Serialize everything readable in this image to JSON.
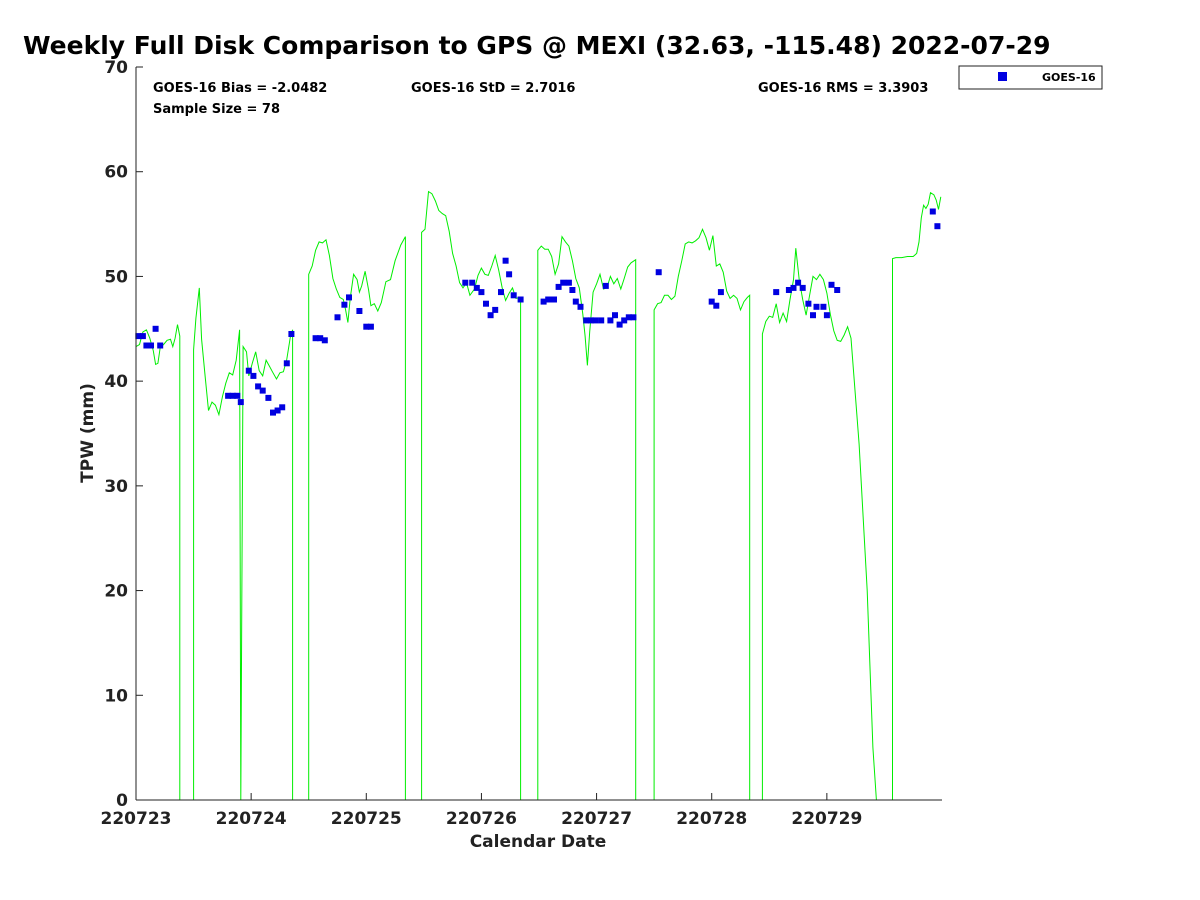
{
  "chart_data": {
    "type": "scatter",
    "title": "Weekly Full Disk Comparison to GPS @ MEXI (32.63, -115.48) 2022-07-29",
    "xlabel": "Calendar Date",
    "ylabel": "TPW (mm)",
    "xlim": [
      0,
      7
    ],
    "ylim": [
      0,
      70
    ],
    "x_ticks": [
      {
        "value": 0,
        "label": "220723"
      },
      {
        "value": 1,
        "label": "220724"
      },
      {
        "value": 2,
        "label": "220725"
      },
      {
        "value": 3,
        "label": "220726"
      },
      {
        "value": 4,
        "label": "220727"
      },
      {
        "value": 5,
        "label": "220728"
      },
      {
        "value": 6,
        "label": "220729"
      }
    ],
    "y_ticks": [
      0,
      10,
      20,
      30,
      40,
      50,
      60,
      70
    ],
    "grid": false,
    "legend_position": "top-right",
    "stats": {
      "bias": "GOES-16 Bias = -2.0482",
      "std": "GOES-16 StD = 2.7016",
      "rms": "GOES-16 RMS = 3.3903",
      "sample": "Sample Size = 78"
    },
    "series": [
      {
        "name": "GOES-16",
        "type": "scatter",
        "marker": "square",
        "color": "#0000e0",
        "points": [
          [
            0.02,
            44.3
          ],
          [
            0.06,
            44.3
          ],
          [
            0.09,
            43.4
          ],
          [
            0.13,
            43.4
          ],
          [
            0.17,
            45.0
          ],
          [
            0.21,
            43.4
          ],
          [
            0.8,
            38.6
          ],
          [
            0.84,
            38.6
          ],
          [
            0.88,
            38.6
          ],
          [
            0.91,
            38.0
          ],
          [
            0.98,
            41.0
          ],
          [
            1.02,
            40.5
          ],
          [
            1.06,
            39.5
          ],
          [
            1.1,
            39.1
          ],
          [
            1.15,
            38.4
          ],
          [
            1.19,
            37.0
          ],
          [
            1.23,
            37.2
          ],
          [
            1.27,
            37.5
          ],
          [
            1.31,
            41.7
          ],
          [
            1.35,
            44.5
          ],
          [
            1.56,
            44.1
          ],
          [
            1.6,
            44.1
          ],
          [
            1.64,
            43.9
          ],
          [
            1.75,
            46.1
          ],
          [
            1.81,
            47.3
          ],
          [
            1.85,
            48.0
          ],
          [
            1.94,
            46.7
          ],
          [
            2.0,
            45.2
          ],
          [
            2.04,
            45.2
          ],
          [
            2.86,
            49.4
          ],
          [
            2.92,
            49.4
          ],
          [
            2.96,
            48.9
          ],
          [
            3.0,
            48.5
          ],
          [
            3.04,
            47.4
          ],
          [
            3.08,
            46.3
          ],
          [
            3.12,
            46.8
          ],
          [
            3.17,
            48.5
          ],
          [
            3.21,
            51.5
          ],
          [
            3.24,
            50.2
          ],
          [
            3.28,
            48.2
          ],
          [
            3.34,
            47.8
          ],
          [
            3.54,
            47.6
          ],
          [
            3.58,
            47.8
          ],
          [
            3.63,
            47.8
          ],
          [
            3.67,
            49.0
          ],
          [
            3.71,
            49.4
          ],
          [
            3.76,
            49.4
          ],
          [
            3.79,
            48.7
          ],
          [
            3.82,
            47.6
          ],
          [
            3.86,
            47.1
          ],
          [
            3.91,
            45.8
          ],
          [
            3.95,
            45.8
          ],
          [
            3.99,
            45.8
          ],
          [
            4.04,
            45.8
          ],
          [
            4.08,
            49.1
          ],
          [
            4.12,
            45.8
          ],
          [
            4.16,
            46.3
          ],
          [
            4.2,
            45.4
          ],
          [
            4.24,
            45.8
          ],
          [
            4.28,
            46.1
          ],
          [
            4.32,
            46.1
          ],
          [
            4.54,
            50.4
          ],
          [
            5.0,
            47.6
          ],
          [
            5.04,
            47.2
          ],
          [
            5.08,
            48.5
          ],
          [
            5.56,
            48.5
          ],
          [
            5.67,
            48.7
          ],
          [
            5.71,
            48.9
          ],
          [
            5.75,
            49.4
          ],
          [
            5.79,
            48.9
          ],
          [
            5.84,
            47.4
          ],
          [
            5.88,
            46.3
          ],
          [
            5.91,
            47.1
          ],
          [
            5.97,
            47.1
          ],
          [
            6.0,
            46.3
          ],
          [
            6.04,
            49.2
          ],
          [
            6.09,
            48.7
          ],
          [
            6.92,
            56.2
          ],
          [
            6.96,
            54.8
          ]
        ]
      },
      {
        "name": "GPS",
        "type": "line",
        "color": "#00ee00",
        "points": [
          [
            0.0,
            43.3
          ],
          [
            0.03,
            43.5
          ],
          [
            0.06,
            44.7
          ],
          [
            0.09,
            44.9
          ],
          [
            0.12,
            44.1
          ],
          [
            0.15,
            42.9
          ],
          [
            0.17,
            41.6
          ],
          [
            0.19,
            41.7
          ],
          [
            0.21,
            43.2
          ],
          [
            0.24,
            43.5
          ],
          [
            0.27,
            43.9
          ],
          [
            0.3,
            44.0
          ],
          [
            0.32,
            43.3
          ],
          [
            0.34,
            44.1
          ],
          [
            0.36,
            45.4
          ],
          [
            0.38,
            44.3
          ],
          [
            0.38,
            0
          ],
          [
            0.5,
            0
          ],
          [
            0.5,
            43.0
          ],
          [
            0.52,
            46.0
          ],
          [
            0.55,
            48.9
          ],
          [
            0.57,
            44.0
          ],
          [
            0.6,
            40.5
          ],
          [
            0.63,
            37.2
          ],
          [
            0.66,
            38.0
          ],
          [
            0.69,
            37.7
          ],
          [
            0.72,
            36.8
          ],
          [
            0.75,
            38.5
          ],
          [
            0.78,
            39.8
          ],
          [
            0.81,
            40.8
          ],
          [
            0.84,
            40.6
          ],
          [
            0.87,
            42.0
          ],
          [
            0.9,
            44.9
          ],
          [
            0.91,
            0
          ],
          [
            0.93,
            43.3
          ],
          [
            0.96,
            42.8
          ],
          [
            0.98,
            40.5
          ],
          [
            1.01,
            41.7
          ],
          [
            1.04,
            42.8
          ],
          [
            1.07,
            41.0
          ],
          [
            1.1,
            40.5
          ],
          [
            1.13,
            42.0
          ],
          [
            1.16,
            41.4
          ],
          [
            1.19,
            40.8
          ],
          [
            1.22,
            40.2
          ],
          [
            1.25,
            40.8
          ],
          [
            1.28,
            40.9
          ],
          [
            1.31,
            42.1
          ],
          [
            1.34,
            44.2
          ],
          [
            1.36,
            44.9
          ],
          [
            1.36,
            0
          ],
          [
            1.5,
            0
          ],
          [
            1.5,
            50.2
          ],
          [
            1.53,
            51.0
          ],
          [
            1.56,
            52.5
          ],
          [
            1.59,
            53.3
          ],
          [
            1.62,
            53.2
          ],
          [
            1.65,
            53.5
          ],
          [
            1.68,
            52.0
          ],
          [
            1.71,
            49.8
          ],
          [
            1.74,
            48.8
          ],
          [
            1.77,
            48.0
          ],
          [
            1.8,
            47.8
          ],
          [
            1.82,
            46.8
          ],
          [
            1.84,
            45.6
          ],
          [
            1.86,
            47.9
          ],
          [
            1.89,
            50.2
          ],
          [
            1.92,
            49.7
          ],
          [
            1.94,
            48.5
          ],
          [
            1.96,
            49.1
          ],
          [
            1.99,
            50.5
          ],
          [
            2.02,
            48.7
          ],
          [
            2.04,
            47.2
          ],
          [
            2.07,
            47.4
          ],
          [
            2.1,
            46.7
          ],
          [
            2.13,
            47.5
          ],
          [
            2.17,
            49.5
          ],
          [
            2.21,
            49.7
          ],
          [
            2.25,
            51.5
          ],
          [
            2.3,
            53.0
          ],
          [
            2.34,
            53.8
          ],
          [
            2.34,
            0
          ],
          [
            2.48,
            0
          ],
          [
            2.48,
            54.2
          ],
          [
            2.51,
            54.5
          ],
          [
            2.54,
            58.1
          ],
          [
            2.57,
            57.9
          ],
          [
            2.6,
            57.2
          ],
          [
            2.63,
            56.3
          ],
          [
            2.66,
            56.0
          ],
          [
            2.69,
            55.8
          ],
          [
            2.72,
            54.3
          ],
          [
            2.75,
            52.2
          ],
          [
            2.78,
            51.0
          ],
          [
            2.81,
            49.4
          ],
          [
            2.84,
            48.9
          ],
          [
            2.87,
            49.4
          ],
          [
            2.9,
            48.2
          ],
          [
            2.94,
            48.8
          ],
          [
            2.97,
            50.1
          ],
          [
            3.0,
            50.8
          ],
          [
            3.03,
            50.2
          ],
          [
            3.06,
            50.1
          ],
          [
            3.09,
            51.0
          ],
          [
            3.12,
            52.0
          ],
          [
            3.15,
            50.6
          ],
          [
            3.18,
            48.9
          ],
          [
            3.21,
            47.7
          ],
          [
            3.24,
            48.4
          ],
          [
            3.27,
            48.9
          ],
          [
            3.3,
            47.9
          ],
          [
            3.34,
            48.0
          ],
          [
            3.34,
            0
          ],
          [
            3.49,
            0
          ],
          [
            3.49,
            52.5
          ],
          [
            3.52,
            52.9
          ],
          [
            3.55,
            52.6
          ],
          [
            3.58,
            52.6
          ],
          [
            3.61,
            51.9
          ],
          [
            3.64,
            50.2
          ],
          [
            3.67,
            51.2
          ],
          [
            3.7,
            53.8
          ],
          [
            3.73,
            53.3
          ],
          [
            3.76,
            52.9
          ],
          [
            3.79,
            51.5
          ],
          [
            3.82,
            49.8
          ],
          [
            3.85,
            48.9
          ],
          [
            3.88,
            46.4
          ],
          [
            3.9,
            44.3
          ],
          [
            3.92,
            41.5
          ],
          [
            3.94,
            44.7
          ],
          [
            3.97,
            48.5
          ],
          [
            4.0,
            49.3
          ],
          [
            4.03,
            50.2
          ],
          [
            4.06,
            48.8
          ],
          [
            4.09,
            48.9
          ],
          [
            4.12,
            50.0
          ],
          [
            4.15,
            49.3
          ],
          [
            4.18,
            49.8
          ],
          [
            4.21,
            48.8
          ],
          [
            4.24,
            49.8
          ],
          [
            4.27,
            50.9
          ],
          [
            4.3,
            51.3
          ],
          [
            4.34,
            51.6
          ],
          [
            4.34,
            0
          ],
          [
            4.5,
            0
          ],
          [
            4.5,
            46.8
          ],
          [
            4.53,
            47.4
          ],
          [
            4.56,
            47.5
          ],
          [
            4.59,
            48.2
          ],
          [
            4.62,
            48.2
          ],
          [
            4.65,
            47.8
          ],
          [
            4.68,
            48.1
          ],
          [
            4.71,
            50.0
          ],
          [
            4.74,
            51.5
          ],
          [
            4.77,
            53.1
          ],
          [
            4.8,
            53.3
          ],
          [
            4.83,
            53.2
          ],
          [
            4.86,
            53.4
          ],
          [
            4.89,
            53.7
          ],
          [
            4.92,
            54.5
          ],
          [
            4.95,
            53.7
          ],
          [
            4.98,
            52.5
          ],
          [
            5.01,
            53.9
          ],
          [
            5.04,
            51.0
          ],
          [
            5.07,
            51.2
          ],
          [
            5.1,
            50.4
          ],
          [
            5.13,
            48.6
          ],
          [
            5.16,
            47.9
          ],
          [
            5.19,
            48.2
          ],
          [
            5.22,
            47.9
          ],
          [
            5.25,
            46.8
          ],
          [
            5.28,
            47.6
          ],
          [
            5.31,
            48.0
          ],
          [
            5.33,
            48.2
          ],
          [
            5.33,
            0
          ],
          [
            5.44,
            0
          ],
          [
            5.44,
            44.5
          ],
          [
            5.47,
            45.7
          ],
          [
            5.5,
            46.2
          ],
          [
            5.53,
            46.1
          ],
          [
            5.56,
            47.4
          ],
          [
            5.59,
            45.6
          ],
          [
            5.62,
            46.5
          ],
          [
            5.65,
            45.7
          ],
          [
            5.68,
            47.8
          ],
          [
            5.71,
            49.7
          ],
          [
            5.73,
            52.7
          ],
          [
            5.76,
            49.7
          ],
          [
            5.79,
            47.8
          ],
          [
            5.82,
            46.3
          ],
          [
            5.85,
            48.2
          ],
          [
            5.88,
            50.0
          ],
          [
            5.91,
            49.7
          ],
          [
            5.94,
            50.2
          ],
          [
            5.97,
            49.7
          ],
          [
            6.0,
            48.4
          ],
          [
            6.03,
            46.4
          ],
          [
            6.06,
            44.8
          ],
          [
            6.09,
            43.9
          ],
          [
            6.12,
            43.8
          ],
          [
            6.15,
            44.4
          ],
          [
            6.18,
            45.2
          ],
          [
            6.21,
            44.1
          ],
          [
            6.28,
            34.0
          ],
          [
            6.35,
            20.0
          ],
          [
            6.4,
            5.0
          ],
          [
            6.43,
            0
          ],
          [
            6.43,
            0
          ],
          [
            6.57,
            0
          ],
          [
            6.57,
            51.7
          ],
          [
            6.6,
            51.8
          ],
          [
            6.65,
            51.8
          ],
          [
            6.7,
            51.9
          ],
          [
            6.75,
            51.9
          ],
          [
            6.78,
            52.2
          ],
          [
            6.8,
            53.3
          ],
          [
            6.82,
            55.6
          ],
          [
            6.84,
            56.8
          ],
          [
            6.86,
            56.5
          ],
          [
            6.88,
            56.9
          ],
          [
            6.9,
            58.0
          ],
          [
            6.93,
            57.8
          ],
          [
            6.95,
            57.3
          ],
          [
            6.97,
            56.4
          ],
          [
            6.99,
            57.6
          ]
        ]
      }
    ]
  }
}
